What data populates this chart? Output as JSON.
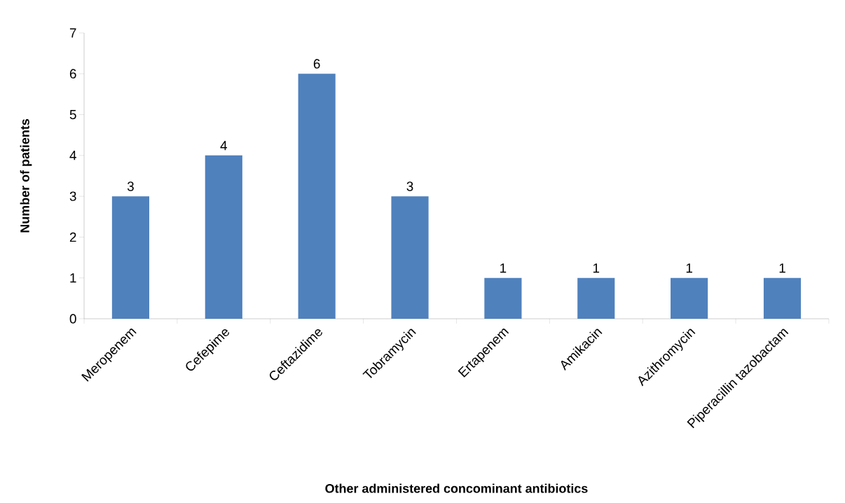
{
  "chart_data": {
    "type": "bar",
    "xlabel": "Other administered concominant antibiotics",
    "ylabel": "Number of patients",
    "categories": [
      "Meropenem",
      "Cefepime",
      "Ceftazidime",
      "Tobramycin",
      "Ertapenem",
      "Amikacin",
      "Azithromycin",
      "Piperacillin tazobactam"
    ],
    "values": [
      3,
      4,
      6,
      3,
      1,
      1,
      1,
      1
    ],
    "color": "#4f81bd",
    "ylim": [
      0,
      7
    ],
    "yticks": [
      0,
      1,
      2,
      3,
      4,
      5,
      6,
      7
    ],
    "data_labels": true
  }
}
